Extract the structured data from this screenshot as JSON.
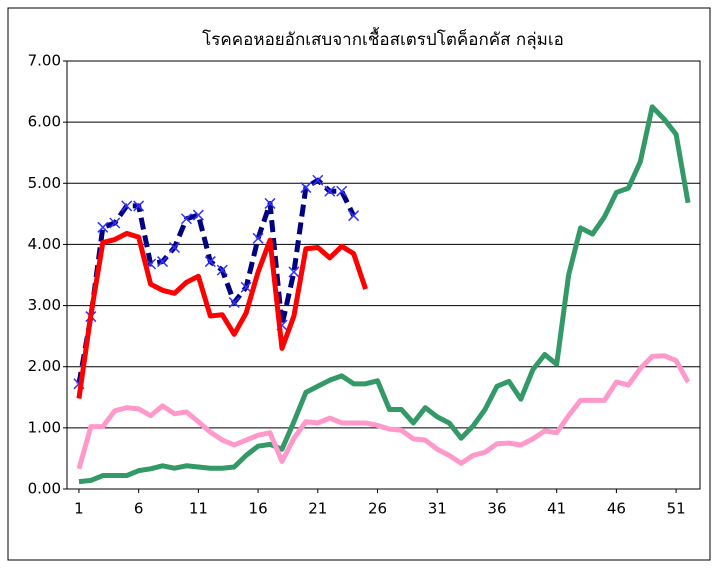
{
  "chart_data": {
    "type": "line",
    "title": "โรคคอหอยอักเสบจากเชื้อสเตรปโตค็อกคัส  กลุ่มเอ",
    "x": [
      1,
      2,
      3,
      4,
      5,
      6,
      7,
      8,
      9,
      10,
      11,
      12,
      13,
      14,
      15,
      16,
      17,
      18,
      19,
      20,
      21,
      22,
      23,
      24,
      25,
      26,
      27,
      28,
      29,
      30,
      31,
      32,
      33,
      34,
      35,
      36,
      37,
      38,
      39,
      40,
      41,
      42,
      43,
      44,
      45,
      46,
      47,
      48,
      49,
      50,
      51,
      52
    ],
    "xlim": [
      0,
      53
    ],
    "xticks": [
      1,
      6,
      11,
      16,
      21,
      26,
      31,
      36,
      41,
      46,
      51
    ],
    "ylim": [
      0,
      7
    ],
    "yticks": [
      {
        "value": 0,
        "label": "0.00"
      },
      {
        "value": 1,
        "label": "1.00"
      },
      {
        "value": 2,
        "label": "2.00"
      },
      {
        "value": 3,
        "label": "3.00"
      },
      {
        "value": 4,
        "label": "4.00"
      },
      {
        "value": 5,
        "label": "5.00"
      },
      {
        "value": 6,
        "label": "6.00"
      },
      {
        "value": 7,
        "label": "7.00"
      }
    ],
    "grid": true,
    "series": [
      {
        "color": "#339966",
        "values": [
          0.12,
          0.14,
          0.22,
          0.22,
          0.22,
          0.3,
          0.33,
          0.38,
          0.34,
          0.38,
          0.36,
          0.34,
          0.34,
          0.36,
          0.55,
          0.7,
          0.73,
          0.65,
          1.1,
          1.58,
          1.68,
          1.78,
          1.85,
          1.72,
          1.72,
          1.77,
          1.3,
          1.3,
          1.08,
          1.33,
          1.18,
          1.08,
          0.83,
          1.03,
          1.3,
          1.68,
          1.76,
          1.47,
          1.95,
          2.2,
          2.04,
          3.5,
          4.27,
          4.17,
          4.45,
          4.85,
          4.92,
          5.35,
          6.25,
          6.05,
          5.8,
          4.68
        ]
      },
      {
        "color": "#ff99cc",
        "values": [
          0.33,
          1.02,
          1.02,
          1.28,
          1.33,
          1.31,
          1.2,
          1.36,
          1.23,
          1.26,
          1.1,
          0.93,
          0.8,
          0.72,
          0.8,
          0.88,
          0.92,
          0.45,
          0.83,
          1.1,
          1.08,
          1.16,
          1.08,
          1.08,
          1.08,
          1.04,
          0.98,
          0.96,
          0.82,
          0.8,
          0.65,
          0.55,
          0.42,
          0.55,
          0.6,
          0.74,
          0.75,
          0.72,
          0.82,
          0.95,
          0.92,
          1.2,
          1.45,
          1.45,
          1.45,
          1.75,
          1.7,
          1.97,
          2.17,
          2.18,
          2.1,
          1.75
        ]
      },
      {
        "color": "#000080",
        "dashed": true,
        "marker": "x",
        "values": [
          1.72,
          2.82,
          4.28,
          4.35,
          4.63,
          4.63,
          3.68,
          3.72,
          3.95,
          4.42,
          4.48,
          3.72,
          3.58,
          3.05,
          3.3,
          4.1,
          4.67,
          2.68,
          3.55,
          4.93,
          5.05,
          4.87,
          4.87,
          4.47,
          null,
          null,
          null,
          null,
          null,
          null,
          null,
          null,
          null,
          null,
          null,
          null,
          null,
          null,
          null,
          null,
          null,
          null,
          null,
          null,
          null,
          null,
          null,
          null,
          null,
          null,
          null,
          null
        ]
      },
      {
        "color": "#ff0000",
        "values": [
          1.48,
          2.85,
          4.03,
          4.08,
          4.18,
          4.12,
          3.35,
          3.25,
          3.2,
          3.38,
          3.48,
          2.83,
          2.85,
          2.53,
          2.88,
          3.55,
          4.07,
          2.3,
          2.83,
          3.93,
          3.95,
          3.78,
          3.97,
          3.85,
          3.27,
          null,
          null,
          null,
          null,
          null,
          null,
          null,
          null,
          null,
          null,
          null,
          null,
          null,
          null,
          null,
          null,
          null,
          null,
          null,
          null,
          null,
          null,
          null,
          null,
          null,
          null,
          null
        ]
      }
    ]
  }
}
